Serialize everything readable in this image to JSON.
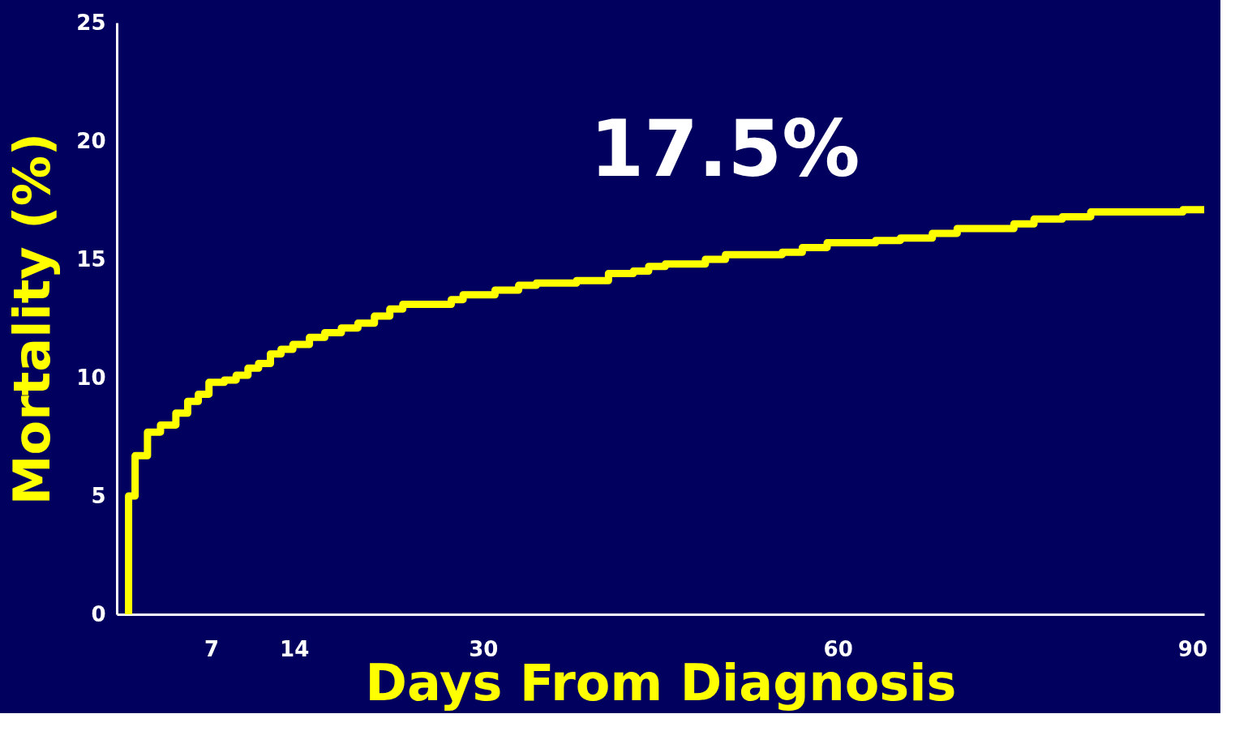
{
  "chart_data": {
    "type": "step",
    "xlabel": "Days From Diagnosis",
    "ylabel": "Mortality (%)",
    "annotations": [
      "17.5%"
    ],
    "x": [
      0,
      0,
      0.55,
      1.6,
      2.7,
      4.0,
      5.0,
      5.9,
      6.8,
      8.1,
      9.1,
      10.1,
      11,
      12,
      12.9,
      13.9,
      15.3,
      16.6,
      18,
      19.4,
      20.8,
      22.1,
      23.2,
      27.3,
      28.3,
      31,
      33,
      34.5,
      37.9,
      40.6,
      42.7,
      44,
      45.4,
      48.8,
      50.5,
      55.3,
      57,
      59.1,
      63.2,
      65.3,
      68,
      70.1,
      74.9,
      76.6,
      79,
      81.4,
      89.2,
      91
    ],
    "series": [
      {
        "color": "#ffff00",
        "values": [
          0,
          5.0,
          6.7,
          7.7,
          8.0,
          8.5,
          9.0,
          9.3,
          9.8,
          9.9,
          10.1,
          10.4,
          10.6,
          11.0,
          11.2,
          11.4,
          11.7,
          11.9,
          12.1,
          12.3,
          12.6,
          12.9,
          13.1,
          13.3,
          13.5,
          13.7,
          13.9,
          14.0,
          14.1,
          14.4,
          14.5,
          14.7,
          14.8,
          15.0,
          15.2,
          15.3,
          15.5,
          15.7,
          15.8,
          15.9,
          16.1,
          16.3,
          16.5,
          16.7,
          16.8,
          17.0,
          17.1,
          17.1
        ]
      }
    ],
    "xlim": [
      -1,
      91
    ],
    "xticks": [
      7,
      14,
      30,
      60,
      90
    ],
    "ylim": [
      0,
      25
    ],
    "yticks": [
      0,
      5,
      10,
      15,
      20,
      25
    ],
    "grid": false,
    "marker": "none",
    "line_style": "solid"
  }
}
